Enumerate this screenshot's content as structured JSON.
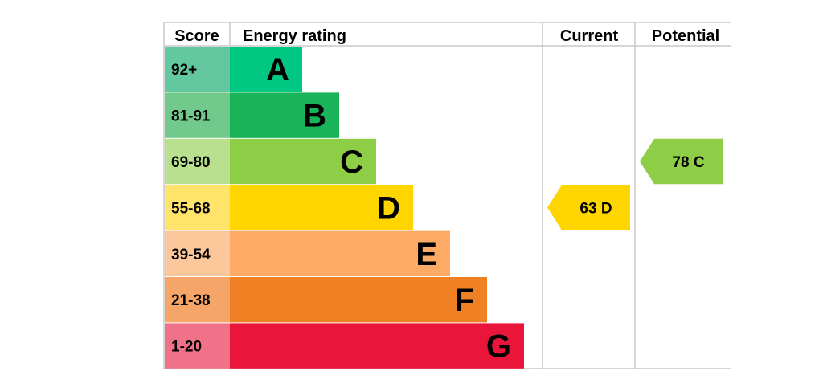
{
  "chart_data": {
    "type": "bar",
    "headers": {
      "score": "Score",
      "rating": "Energy rating",
      "current": "Current",
      "potential": "Potential"
    },
    "bands": [
      {
        "letter": "A",
        "range": "92+",
        "bar_color": "#00c781",
        "score_color": "#63c7a0",
        "rank": 1
      },
      {
        "letter": "B",
        "range": "81-91",
        "bar_color": "#19b459",
        "score_color": "#72c98c",
        "rank": 2
      },
      {
        "letter": "C",
        "range": "69-80",
        "bar_color": "#8dce46",
        "score_color": "#b8e08e",
        "rank": 3
      },
      {
        "letter": "D",
        "range": "55-68",
        "bar_color": "#ffd500",
        "score_color": "#ffe36a",
        "rank": 4
      },
      {
        "letter": "E",
        "range": "39-54",
        "bar_color": "#fcaa65",
        "score_color": "#fdc79c",
        "rank": 5
      },
      {
        "letter": "F",
        "range": "21-38",
        "bar_color": "#ef8023",
        "score_color": "#f4a567",
        "rank": 6
      },
      {
        "letter": "G",
        "range": "1-20",
        "bar_color": "#e9153b",
        "score_color": "#f07288",
        "rank": 7
      }
    ],
    "current": {
      "score": 63,
      "letter": "D",
      "label": "63  D",
      "color": "#ffd500"
    },
    "potential": {
      "score": 78,
      "letter": "C",
      "label": "78  C",
      "color": "#8dce46"
    }
  }
}
